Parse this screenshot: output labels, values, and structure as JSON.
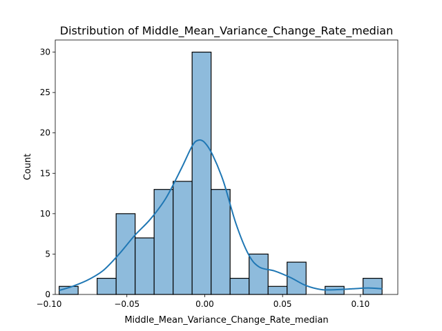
{
  "chart_data": {
    "type": "bar",
    "title": "Distribution of Middle_Mean_Variance_Change_Rate_median",
    "xlabel": "Middle_Mean_Variance_Change_Rate_median",
    "ylabel": "Count",
    "xlim": [
      -0.096,
      0.124
    ],
    "ylim": [
      0,
      31.5
    ],
    "xticks": [
      -0.1,
      -0.05,
      0.0,
      0.05,
      0.1
    ],
    "xtick_labels": [
      "−0.10",
      "−0.05",
      "0.00",
      "0.05",
      "0.10"
    ],
    "yticks": [
      0,
      5,
      10,
      15,
      20,
      25,
      30
    ],
    "ytick_labels": [
      "0",
      "5",
      "10",
      "15",
      "20",
      "25",
      "30"
    ],
    "bin_edges": [
      -0.0935,
      -0.0813,
      -0.0691,
      -0.0569,
      -0.0447,
      -0.0325,
      -0.0203,
      -0.0081,
      0.0041,
      0.0163,
      0.0285,
      0.0407,
      0.0529,
      0.0651,
      0.0773,
      0.0895,
      0.1017,
      0.1139
    ],
    "counts": [
      1,
      0,
      2,
      10,
      7,
      13,
      14,
      30,
      13,
      2,
      5,
      1,
      4,
      0,
      1,
      0,
      2
    ],
    "kde": {
      "x": [
        -0.0935,
        -0.085,
        -0.075,
        -0.065,
        -0.055,
        -0.045,
        -0.035,
        -0.025,
        -0.015,
        -0.008,
        -0.004,
        0.0,
        0.005,
        0.012,
        0.02,
        0.028,
        0.035,
        0.045,
        0.055,
        0.065,
        0.075,
        0.085,
        0.095,
        0.105,
        0.114
      ],
      "y": [
        0.5,
        1.0,
        1.8,
        3.0,
        5.0,
        7.3,
        9.3,
        11.9,
        15.6,
        18.4,
        19.1,
        18.8,
        17.3,
        14.0,
        8.8,
        5.0,
        3.4,
        2.9,
        2.1,
        1.1,
        0.6,
        0.6,
        0.7,
        0.8,
        0.7
      ]
    },
    "bar_color": "#8ebbdc",
    "line_color": "#1f77b4",
    "grid": false,
    "legend": "none"
  }
}
